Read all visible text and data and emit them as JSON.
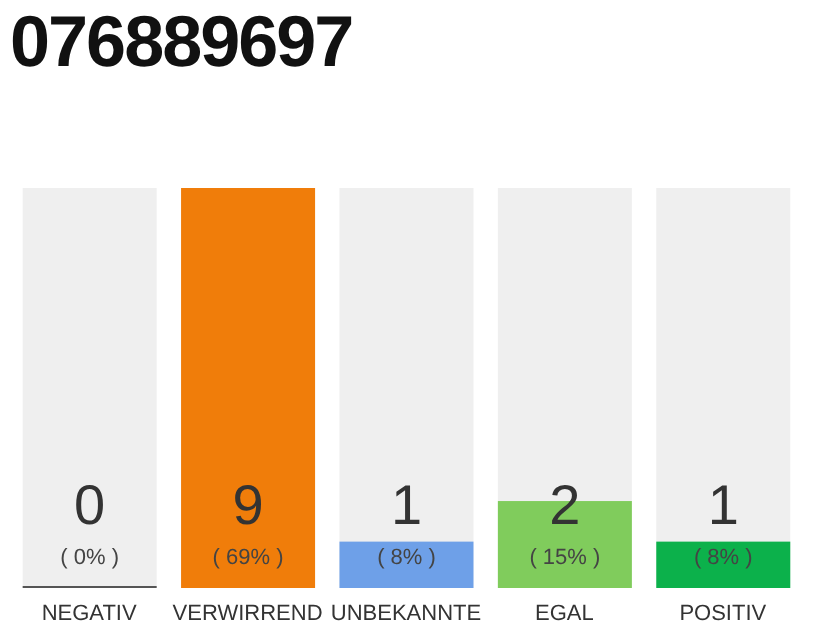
{
  "chart_data": {
    "type": "bar",
    "title": "076889697",
    "categories": [
      "NEGATIV",
      "VERWIRREND",
      "UNBEKANNTE",
      "EGAL",
      "POSITIV"
    ],
    "values": [
      0,
      69,
      8,
      15,
      8
    ],
    "colors": [
      "#555555",
      "#f07d0a",
      "#6ea0e8",
      "#80cc5c",
      "#0cb14b"
    ],
    "value_labels": [
      "( 0% )",
      "( 69% )",
      "( 8% )",
      "( 15% )",
      "( 8% )"
    ],
    "annotations": [
      "0",
      "9",
      "1",
      "2",
      "1"
    ]
  }
}
